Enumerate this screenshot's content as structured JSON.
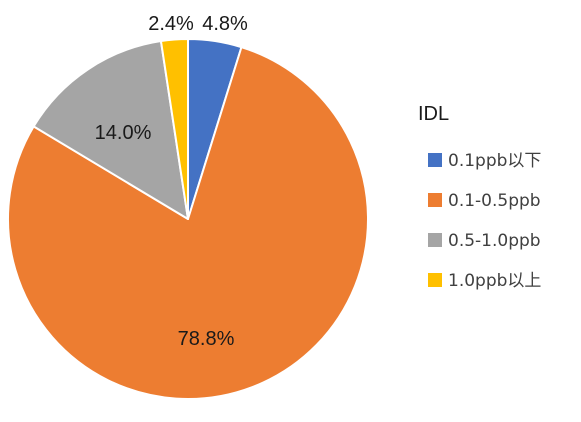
{
  "chart_data": {
    "type": "pie",
    "title": "",
    "legend_title": "IDL",
    "legend_position": "right",
    "categories": [
      "0.1ppb以下",
      "0.1-0.5ppb",
      "0.5-1.0ppb",
      "1.0ppb以上"
    ],
    "values": [
      4.8,
      78.8,
      14.0,
      2.4
    ],
    "value_labels": [
      "4.8%",
      "78.8%",
      "14.0%",
      "2.4%"
    ],
    "colors": [
      "#4472c4",
      "#ed7d31",
      "#a5a5a5",
      "#ffc000"
    ],
    "start_angle": "12 o'clock",
    "direction": "clockwise"
  }
}
